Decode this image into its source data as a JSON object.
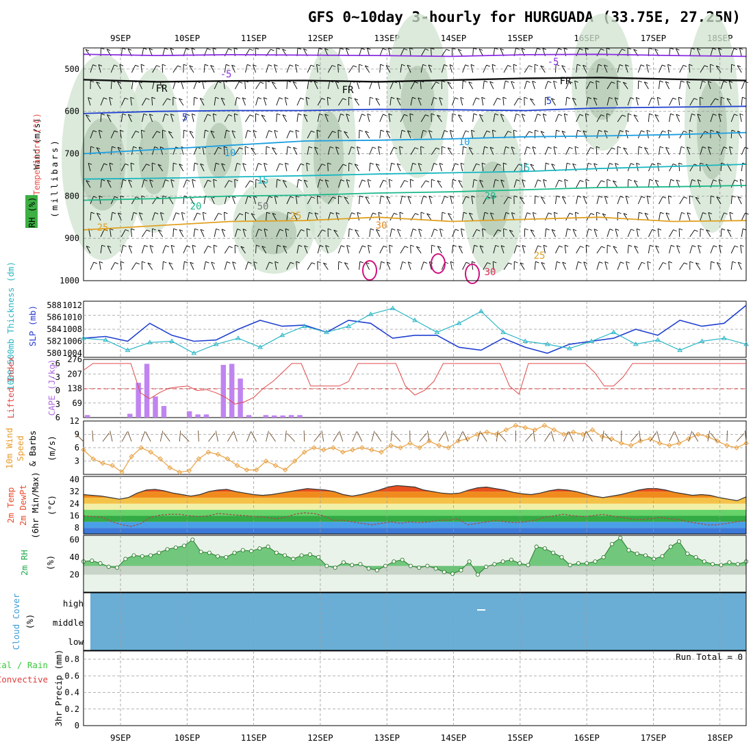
{
  "title": "GFS 0~10day 3-hourly for HURGUADA (33.75E, 27.25N)",
  "dates": [
    "9SEP",
    "10SEP",
    "11SEP",
    "12SEP",
    "13SEP",
    "14SEP",
    "15SEP",
    "16SEP",
    "17SEP",
    "18SEP"
  ],
  "panels": {
    "upper": {
      "labels": [
        "Wind (m/s)",
        "Temperature (°C)",
        "RH (%)",
        "(millibars)"
      ],
      "pressure_ticks": [
        "500",
        "600",
        "700",
        "800",
        "900",
        "1000"
      ],
      "contour_labels": [
        "-5",
        "-5",
        "FR",
        "FR",
        "FR",
        "5",
        "5",
        "10",
        "10",
        "15",
        "15",
        "20",
        "20",
        "25",
        "25",
        "30",
        "25",
        "30",
        "50"
      ],
      "colors": {
        "rh": "#4caf50",
        "temperature": "#e85d2a",
        "wind": "#000000"
      }
    },
    "slp": {
      "labels": [
        "1000-500mb Thickness (dm)",
        "SLP (mb)"
      ],
      "left_ticks": [
        "580",
        "582",
        "584",
        "586",
        "588"
      ],
      "right_ticks": [
        "1004",
        "1006",
        "1008",
        "1010",
        "1012"
      ]
    },
    "cape": {
      "labels": [
        "Lifted Index",
        "CAPE (J/kg)"
      ],
      "left_ticks": [
        "6",
        "3",
        "0",
        "-3",
        "-6"
      ],
      "right_ticks": [
        "69",
        "138",
        "207",
        "276"
      ]
    },
    "wind10": {
      "labels": [
        "10m Wind",
        "Speed",
        "& Barbs",
        "(m/s)"
      ],
      "ticks": [
        "3",
        "6",
        "9",
        "12"
      ]
    },
    "temp": {
      "labels": [
        "2m Temp",
        "2m DewPt",
        "(6hr Min/Max)",
        "(°C)"
      ],
      "ticks": [
        "8",
        "16",
        "24",
        "32",
        "40"
      ]
    },
    "rh2m": {
      "labels": [
        "2m RH",
        "(%)"
      ],
      "ticks": [
        "20",
        "40",
        "60"
      ]
    },
    "cloud": {
      "labels": [
        "Cloud Cover",
        "(%)"
      ],
      "levels": [
        "high",
        "middle",
        "low"
      ]
    },
    "precip": {
      "labels": [
        "Total / Rain",
        "Convective",
        "3hr Precip (mm)"
      ],
      "ticks": [
        "0",
        "0.2",
        "0.4",
        "0.6",
        "0.8"
      ],
      "run_total": "Run Total = 0"
    }
  },
  "chart_data": [
    {
      "type": "line",
      "title": "GFS 0~10day 3-hourly for HURGUADA (33.75E, 27.25N)",
      "panel": "upper-air cross-section",
      "ylabel": "(millibars)",
      "ylim": [
        1000,
        450
      ],
      "x": [
        "9SEP",
        "10SEP",
        "11SEP",
        "12SEP",
        "13SEP",
        "14SEP",
        "15SEP",
        "16SEP",
        "17SEP",
        "18SEP"
      ],
      "series": [
        {
          "name": "-5",
          "values": [
            465,
            468,
            466,
            467,
            468,
            470,
            466,
            465,
            468,
            470
          ]
        },
        {
          "name": "FR",
          "values": [
            525,
            530,
            528,
            527,
            530,
            526,
            522,
            520,
            524,
            527
          ]
        },
        {
          "name": "5",
          "values": [
            605,
            600,
            598,
            598,
            595,
            596,
            598,
            592,
            590,
            588
          ]
        },
        {
          "name": "10",
          "values": [
            700,
            690,
            680,
            670,
            668,
            665,
            660,
            658,
            655,
            650
          ]
        },
        {
          "name": "15",
          "values": [
            760,
            758,
            755,
            752,
            748,
            745,
            742,
            735,
            730,
            725
          ]
        },
        {
          "name": "20",
          "values": [
            810,
            806,
            800,
            798,
            793,
            790,
            785,
            780,
            778,
            775
          ]
        },
        {
          "name": "25",
          "values": [
            880,
            870,
            860,
            858,
            850,
            860,
            855,
            850,
            860,
            858
          ]
        }
      ]
    },
    {
      "type": "line",
      "panel": "thickness-slp",
      "series": [
        {
          "name": "SLP (mb)",
          "values": [
            1006.5,
            1006.8,
            1006.0,
            1009.0,
            1007.0,
            1006.0,
            1006.2,
            1008.0,
            1009.5,
            1008.5,
            1008.7,
            1007.5,
            1009.5,
            1009.0,
            1006.5,
            1007.0,
            1007.0,
            1005.0,
            1004.5,
            1006.5,
            1005.0,
            1004.0,
            1005.5,
            1006.0,
            1006.5,
            1008.0,
            1007.0,
            1009.5,
            1008.5,
            1009.0,
            1012.0
          ]
        },
        {
          "name": "1000-500mb Thickness (dm)",
          "values": [
            582.5,
            582.2,
            580.5,
            581.8,
            582.0,
            580.0,
            581.5,
            582.5,
            581.0,
            583.0,
            584.5,
            583.5,
            584.5,
            586.5,
            587.5,
            585.5,
            583.5,
            585.0,
            587.0,
            583.5,
            582.0,
            581.5,
            580.8,
            582.0,
            583.5,
            581.5,
            582.2,
            580.5,
            582.0,
            582.5,
            581.5
          ]
        }
      ]
    },
    {
      "type": "bar",
      "panel": "cape-lifted-index",
      "series": [
        {
          "name": "CAPE (J/kg)",
          "values": [
            12,
            0,
            0,
            0,
            0,
            18,
            165,
            255,
            100,
            55,
            0,
            0,
            30,
            15,
            15,
            0,
            250,
            255,
            185,
            12,
            0,
            12,
            10,
            10,
            12,
            12,
            0,
            0,
            0,
            0,
            0,
            0,
            0,
            0,
            0,
            0,
            0,
            0,
            0,
            0,
            0,
            0,
            0,
            0,
            0,
            0,
            0,
            0,
            0,
            0,
            0,
            0,
            0,
            0,
            0,
            0,
            0,
            0,
            0,
            0,
            0,
            0,
            0,
            0,
            0,
            0,
            0,
            0,
            0,
            0,
            0,
            0,
            0,
            0,
            0,
            0,
            0,
            0
          ]
        },
        {
          "name": "Lifted Index",
          "values": [
            4.5,
            6,
            6,
            6,
            6,
            6,
            -0.5,
            -1.8,
            -0.5,
            0.5,
            0.8,
            1,
            0,
            0.2,
            -0.5,
            -1.5,
            -3,
            -2.5,
            -1.5,
            0.5,
            2,
            4,
            6,
            6,
            1,
            1,
            1,
            1,
            2,
            6,
            6,
            6,
            6,
            6,
            1,
            -1,
            0,
            2,
            6,
            6,
            6,
            6,
            6,
            6,
            6,
            1,
            -0.8,
            6,
            6,
            6,
            6,
            6,
            6,
            6,
            4,
            1,
            1,
            3,
            6,
            6,
            6,
            6,
            6,
            6,
            6,
            6,
            6,
            6,
            6,
            6,
            6
          ]
        }
      ]
    },
    {
      "type": "line",
      "panel": "10m wind",
      "ylabel": "(m/s)",
      "ylim": [
        0,
        12
      ],
      "series": [
        {
          "name": "Speed",
          "values": [
            5.5,
            3.5,
            2.5,
            2,
            0.5,
            4,
            6,
            5,
            3.5,
            1.5,
            0.5,
            0.8,
            3.5,
            5,
            4.5,
            3.5,
            2,
            1,
            1,
            3,
            2,
            1,
            3,
            5,
            6,
            5.5,
            6,
            5,
            5.5,
            6,
            5.5,
            5,
            6.5,
            6,
            7,
            6,
            7.5,
            6.5,
            6,
            7.5,
            8,
            9,
            9.5,
            9,
            10,
            11,
            10.5,
            10,
            11,
            10,
            9,
            9.5,
            9,
            10,
            8.5,
            8,
            7,
            6.5,
            7.5,
            8,
            7,
            6.5,
            7,
            8,
            9,
            8.5,
            7.5,
            6.5,
            6,
            7
          ]
        }
      ]
    },
    {
      "type": "area",
      "panel": "2m temp",
      "ylabel": "(°C)",
      "ylim": [
        4,
        42
      ],
      "series": [
        {
          "name": "2m Temp",
          "values": [
            30,
            29.5,
            29,
            28,
            27,
            28,
            31,
            33,
            33.5,
            32.5,
            31,
            30,
            29,
            30,
            32,
            33,
            33.5,
            32,
            31,
            30,
            29.5,
            30,
            31,
            32,
            33,
            34,
            33.5,
            33,
            32,
            30,
            29,
            30,
            31.5,
            33,
            35,
            36,
            35.5,
            35,
            33,
            32,
            31,
            30.5,
            31,
            33,
            34.5,
            35,
            34,
            33,
            31.5,
            30.5,
            30,
            31,
            32.5,
            33.5,
            33,
            32,
            30.5,
            29,
            28,
            29,
            30,
            31.5,
            33,
            34,
            34,
            33,
            31.5,
            30.5,
            29.5,
            30,
            29.5,
            28,
            27,
            26,
            28.5
          ]
        },
        {
          "name": "2m DewPt",
          "values": [
            16,
            15.5,
            15,
            12,
            10,
            9,
            11,
            15,
            16.5,
            17,
            17,
            16,
            15.5,
            16,
            17.5,
            17,
            16.5,
            16,
            15.5,
            15,
            14,
            15,
            17,
            18,
            17.5,
            16,
            13,
            13,
            12,
            11,
            10,
            11,
            12,
            11,
            12,
            11.5,
            12,
            13,
            13,
            14,
            10,
            11,
            12,
            13,
            12,
            11.5,
            12,
            13,
            15,
            16,
            17,
            16,
            15.5,
            16,
            17,
            16,
            15,
            14,
            13.5,
            14,
            15,
            14,
            13.5,
            12,
            11,
            10,
            10,
            11,
            12,
            13
          ]
        }
      ]
    },
    {
      "type": "area",
      "panel": "2m RH",
      "ylabel": "(%)",
      "ylim": [
        0,
        65
      ],
      "series": [
        {
          "name": "2m RH",
          "values": [
            35,
            36,
            33,
            29,
            28,
            38,
            42,
            41,
            42,
            45,
            49,
            51,
            53,
            60,
            46,
            45,
            41,
            40,
            45,
            48,
            47,
            50,
            52,
            45,
            42,
            38,
            42,
            43,
            40,
            30,
            28,
            34,
            31,
            32,
            27,
            25,
            30,
            35,
            37,
            30,
            28,
            30,
            27,
            23,
            21,
            25,
            35,
            20,
            29,
            32,
            35,
            37,
            33,
            31,
            52,
            50,
            45,
            40,
            31,
            33,
            33,
            35,
            40,
            55,
            62,
            48,
            44,
            42,
            38,
            41,
            52,
            58,
            44,
            40,
            35,
            32,
            31,
            34,
            32,
            35
          ]
        }
      ]
    }
  ]
}
